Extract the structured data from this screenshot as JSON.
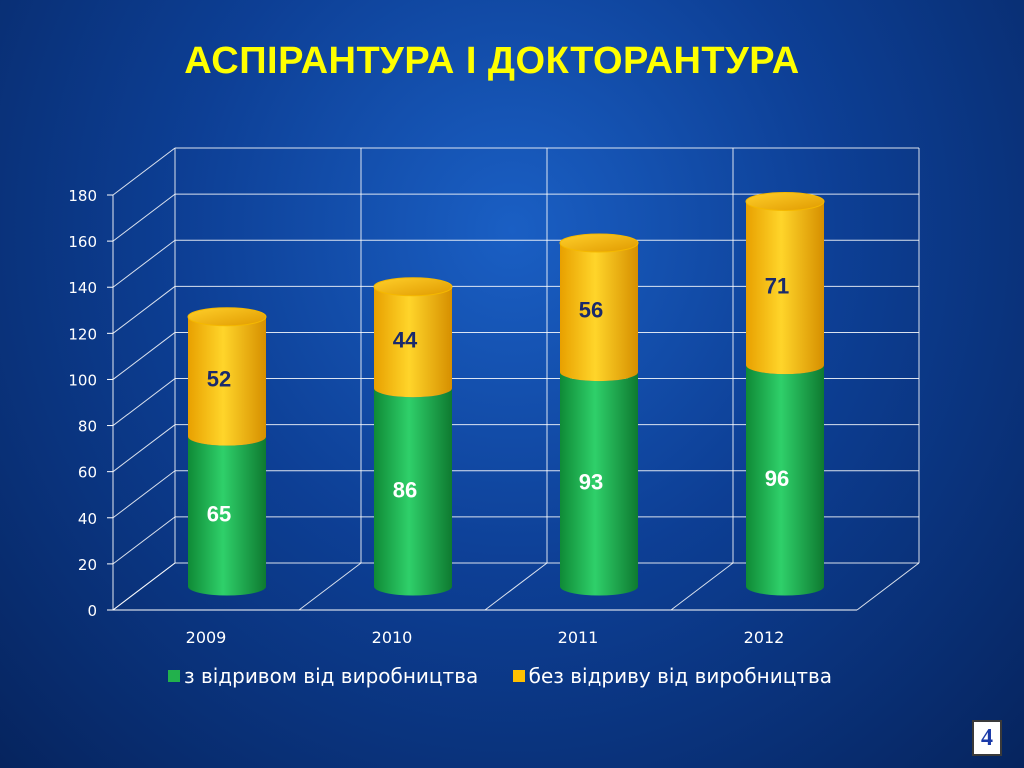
{
  "slide": {
    "title": "АСПІРАНТУРА І ДОКТОРАНТУРА",
    "page_number": "4"
  },
  "colors": {
    "background": "#0d3f95",
    "title": "#ffff00",
    "green": "#22b14c",
    "yellow": "#ffc000",
    "label": "#1a2a6c",
    "label_on_green": "#ffffff"
  },
  "chart_data": {
    "type": "bar",
    "stacked": true,
    "style": "3d-cylinder",
    "title": "",
    "xlabel": "",
    "ylabel": "",
    "categories": [
      "2009",
      "2010",
      "2011",
      "2012"
    ],
    "series": [
      {
        "name": "з відривом від виробництва",
        "values": [
          65,
          86,
          93,
          96
        ],
        "color": "#22b14c"
      },
      {
        "name": "без відриву від виробництва",
        "values": [
          52,
          44,
          56,
          71
        ],
        "color": "#ffc000"
      }
    ],
    "ylim": [
      0,
      180
    ],
    "yticks": [
      0,
      20,
      40,
      60,
      80,
      100,
      120,
      140,
      160,
      180
    ],
    "grid": true,
    "legend_position": "bottom"
  }
}
